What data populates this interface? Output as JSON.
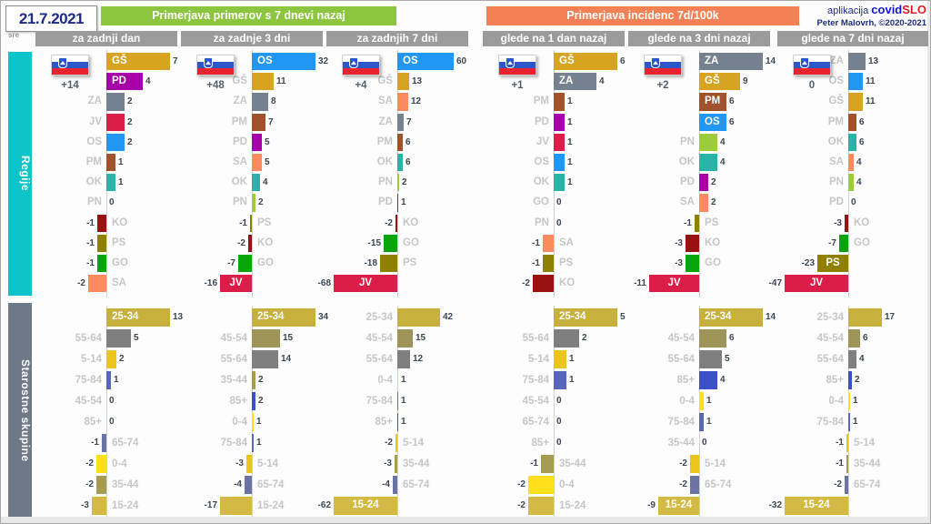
{
  "date": {
    "day": "21.7.2021",
    "weekday": "sre"
  },
  "headers": {
    "cases": "Primerjava primerov s 7 dnevi nazaj",
    "incidence": "Primerjava incidenc 7d/100k",
    "cases_color": "#8cc63e",
    "incidence_color": "#f48055"
  },
  "credits": {
    "app_label": "aplikacija",
    "brand_covid": "covid",
    "brand_slo": "SLO",
    "author": "Peter Malovrh, ©2020-2021"
  },
  "sidebar": {
    "regions_label": "Regije",
    "ages_label": "Starostne skupine"
  },
  "flag_icon": "slovenia-flag",
  "chart_data": {
    "type": "bar",
    "orientation": "horizontal",
    "panels": [
      "Regije",
      "Starostne skupine"
    ],
    "region_colors": {
      "GŠ": "#d7a422",
      "PD": "#a800a8",
      "ZA": "#75818e",
      "JV": "#da1e48",
      "OS": "#2196f3",
      "PM": "#a0522d",
      "OK": "#2ab3a6",
      "PN": "#9ccb3b",
      "KO": "#991111",
      "PS": "#8f8000",
      "GO": "#0aa50a",
      "SA": "#fb8a5e"
    },
    "age_colors": {
      "0-4": "#ffdf1a",
      "5-14": "#ecc51c",
      "15-24": "#d3ba44",
      "25-34": "#c7b03c",
      "35-44": "#a79b4f",
      "45-54": "#9f9458",
      "55-64": "#7f7f7f",
      "65-74": "#6a73a3",
      "75-84": "#5a66bc",
      "85+": "#3a50c4"
    },
    "columns": [
      {
        "group": "cases",
        "subheader": "za zadnji dan",
        "total": "+14",
        "regions": {
          "categories": [
            "GŠ",
            "PD",
            "ZA",
            "JV",
            "OS",
            "PM",
            "OK",
            "PN",
            "KO",
            "PS",
            "GO",
            "SA"
          ],
          "values": [
            7,
            4,
            2,
            2,
            2,
            1,
            1,
            0,
            -1,
            -1,
            -1,
            -2
          ]
        },
        "ages": {
          "categories": [
            "25-34",
            "55-64",
            "5-14",
            "75-84",
            "45-54",
            "85+",
            "65-74",
            "0-4",
            "35-44",
            "15-24"
          ],
          "values": [
            13,
            5,
            2,
            1,
            0,
            0,
            -1,
            -2,
            -2,
            -3
          ]
        }
      },
      {
        "group": "cases",
        "subheader": "za zadnje 3 dni",
        "total": "+48",
        "regions": {
          "categories": [
            "OS",
            "GŠ",
            "ZA",
            "PM",
            "PD",
            "SA",
            "OK",
            "PN",
            "PS",
            "KO",
            "GO",
            "JV"
          ],
          "values": [
            32,
            11,
            8,
            7,
            5,
            5,
            4,
            2,
            -1,
            -2,
            -7,
            -16
          ]
        },
        "ages": {
          "categories": [
            "25-34",
            "45-54",
            "55-64",
            "35-44",
            "85+",
            "0-4",
            "75-84",
            "5-14",
            "65-74",
            "15-24"
          ],
          "values": [
            34,
            15,
            14,
            2,
            2,
            1,
            1,
            -3,
            -4,
            -17
          ]
        }
      },
      {
        "group": "cases",
        "subheader": "za zadnjih 7 dni",
        "total": "+4",
        "regions": {
          "categories": [
            "OS",
            "GŠ",
            "SA",
            "ZA",
            "PM",
            "OK",
            "PN",
            "PD",
            "KO",
            "GO",
            "PS",
            "JV"
          ],
          "values": [
            60,
            13,
            12,
            7,
            6,
            6,
            2,
            1,
            -2,
            -15,
            -18,
            -68
          ]
        },
        "ages": {
          "categories": [
            "25-34",
            "45-54",
            "55-64",
            "0-4",
            "75-84",
            "85+",
            "5-14",
            "35-44",
            "65-74",
            "15-24"
          ],
          "values": [
            42,
            15,
            12,
            1,
            1,
            1,
            -2,
            -3,
            -4,
            -62
          ]
        }
      },
      {
        "group": "incidence",
        "subheader": "glede na 1 dan nazaj",
        "total": "+1",
        "regions": {
          "categories": [
            "GŠ",
            "ZA",
            "PM",
            "PD",
            "JV",
            "OS",
            "OK",
            "GO",
            "PN",
            "SA",
            "PS",
            "KO"
          ],
          "values": [
            6,
            4,
            1,
            1,
            1,
            1,
            1,
            0,
            0,
            -1,
            -1,
            -2
          ]
        },
        "ages": {
          "categories": [
            "25-34",
            "55-64",
            "5-14",
            "75-84",
            "45-54",
            "65-74",
            "85+",
            "35-44",
            "0-4",
            "15-24"
          ],
          "values": [
            5,
            2,
            1,
            1,
            0,
            0,
            0,
            -1,
            -2,
            -2
          ]
        }
      },
      {
        "group": "incidence",
        "subheader": "glede na 3 dni nazaj",
        "total": "+2",
        "regions": {
          "categories": [
            "ZA",
            "GŠ",
            "PM",
            "OS",
            "PN",
            "OK",
            "PD",
            "SA",
            "PS",
            "KO",
            "GO",
            "JV"
          ],
          "values": [
            14,
            9,
            6,
            6,
            4,
            4,
            2,
            2,
            -1,
            -3,
            -3,
            -11
          ]
        },
        "ages": {
          "categories": [
            "25-34",
            "45-54",
            "55-64",
            "85+",
            "0-4",
            "75-84",
            "35-44",
            "5-14",
            "65-74",
            "15-24"
          ],
          "values": [
            14,
            6,
            5,
            4,
            1,
            1,
            0,
            -2,
            -2,
            -9
          ]
        }
      },
      {
        "group": "incidence",
        "subheader": "glede na 7 dni nazaj",
        "total": "0",
        "regions": {
          "categories": [
            "ZA",
            "OS",
            "GŠ",
            "PM",
            "OK",
            "SA",
            "PN",
            "PD",
            "KO",
            "GO",
            "PS",
            "JV"
          ],
          "values": [
            13,
            11,
            11,
            6,
            6,
            4,
            4,
            0,
            -3,
            -7,
            -23,
            -47
          ]
        },
        "ages": {
          "categories": [
            "25-34",
            "45-54",
            "55-64",
            "85+",
            "0-4",
            "75-84",
            "5-14",
            "35-44",
            "65-74",
            "15-24"
          ],
          "values": [
            17,
            6,
            4,
            2,
            1,
            1,
            -1,
            -1,
            -2,
            -32
          ]
        }
      }
    ]
  }
}
